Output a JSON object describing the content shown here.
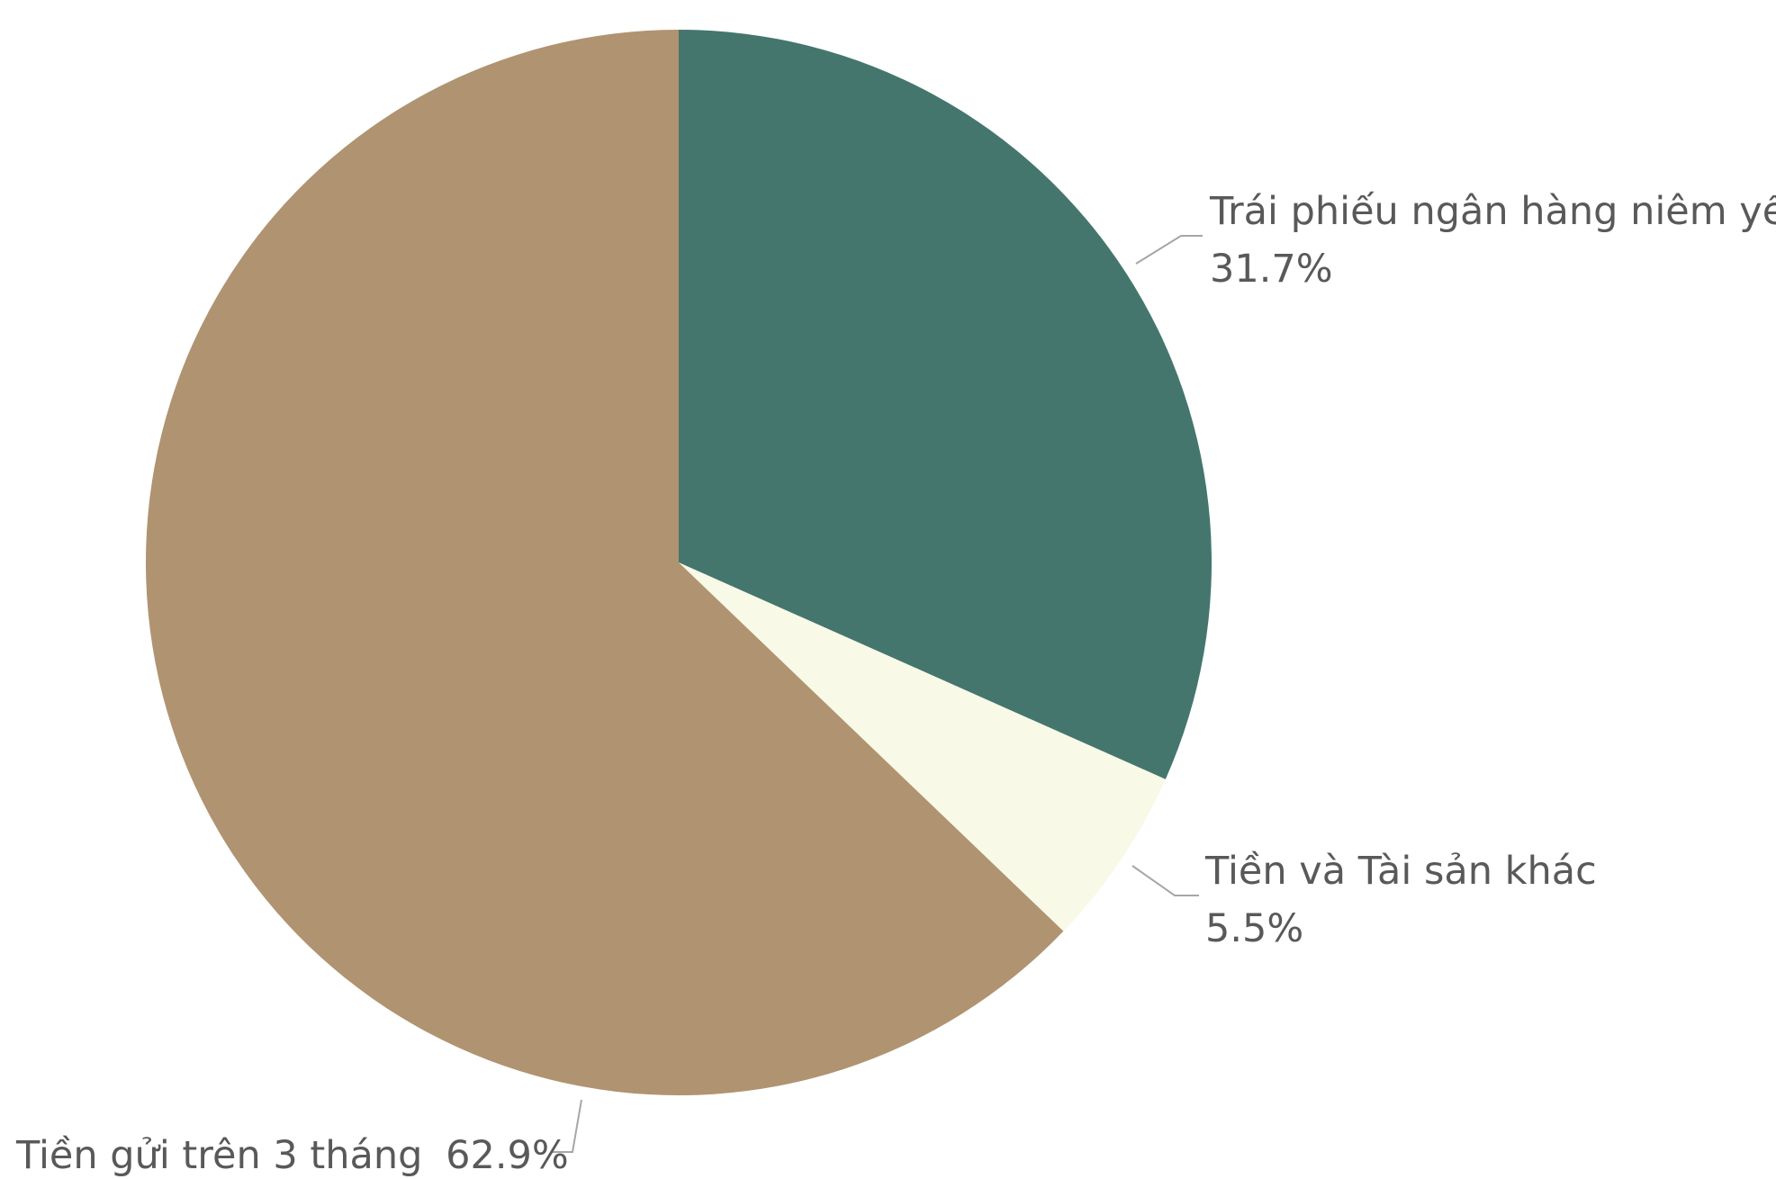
{
  "chart_data": {
    "type": "pie",
    "title": "",
    "slices": [
      {
        "label": "Trái phiếu ngân hàng niêm yết",
        "value": 31.7,
        "value_label": "31.7%",
        "color": "#44766E"
      },
      {
        "label": "Tiền và Tài sản khác",
        "value": 5.5,
        "value_label": "5.5%",
        "color": "#F8F9E6"
      },
      {
        "label": "Tiền gửi trên 3 tháng",
        "value": 62.9,
        "value_label": "62.9%",
        "color": "#B09370"
      }
    ],
    "start_angle_deg": 0,
    "direction": "clockwise",
    "legend": "none",
    "label_color": "#595959",
    "leader_line_color": "#A6A6A6"
  }
}
